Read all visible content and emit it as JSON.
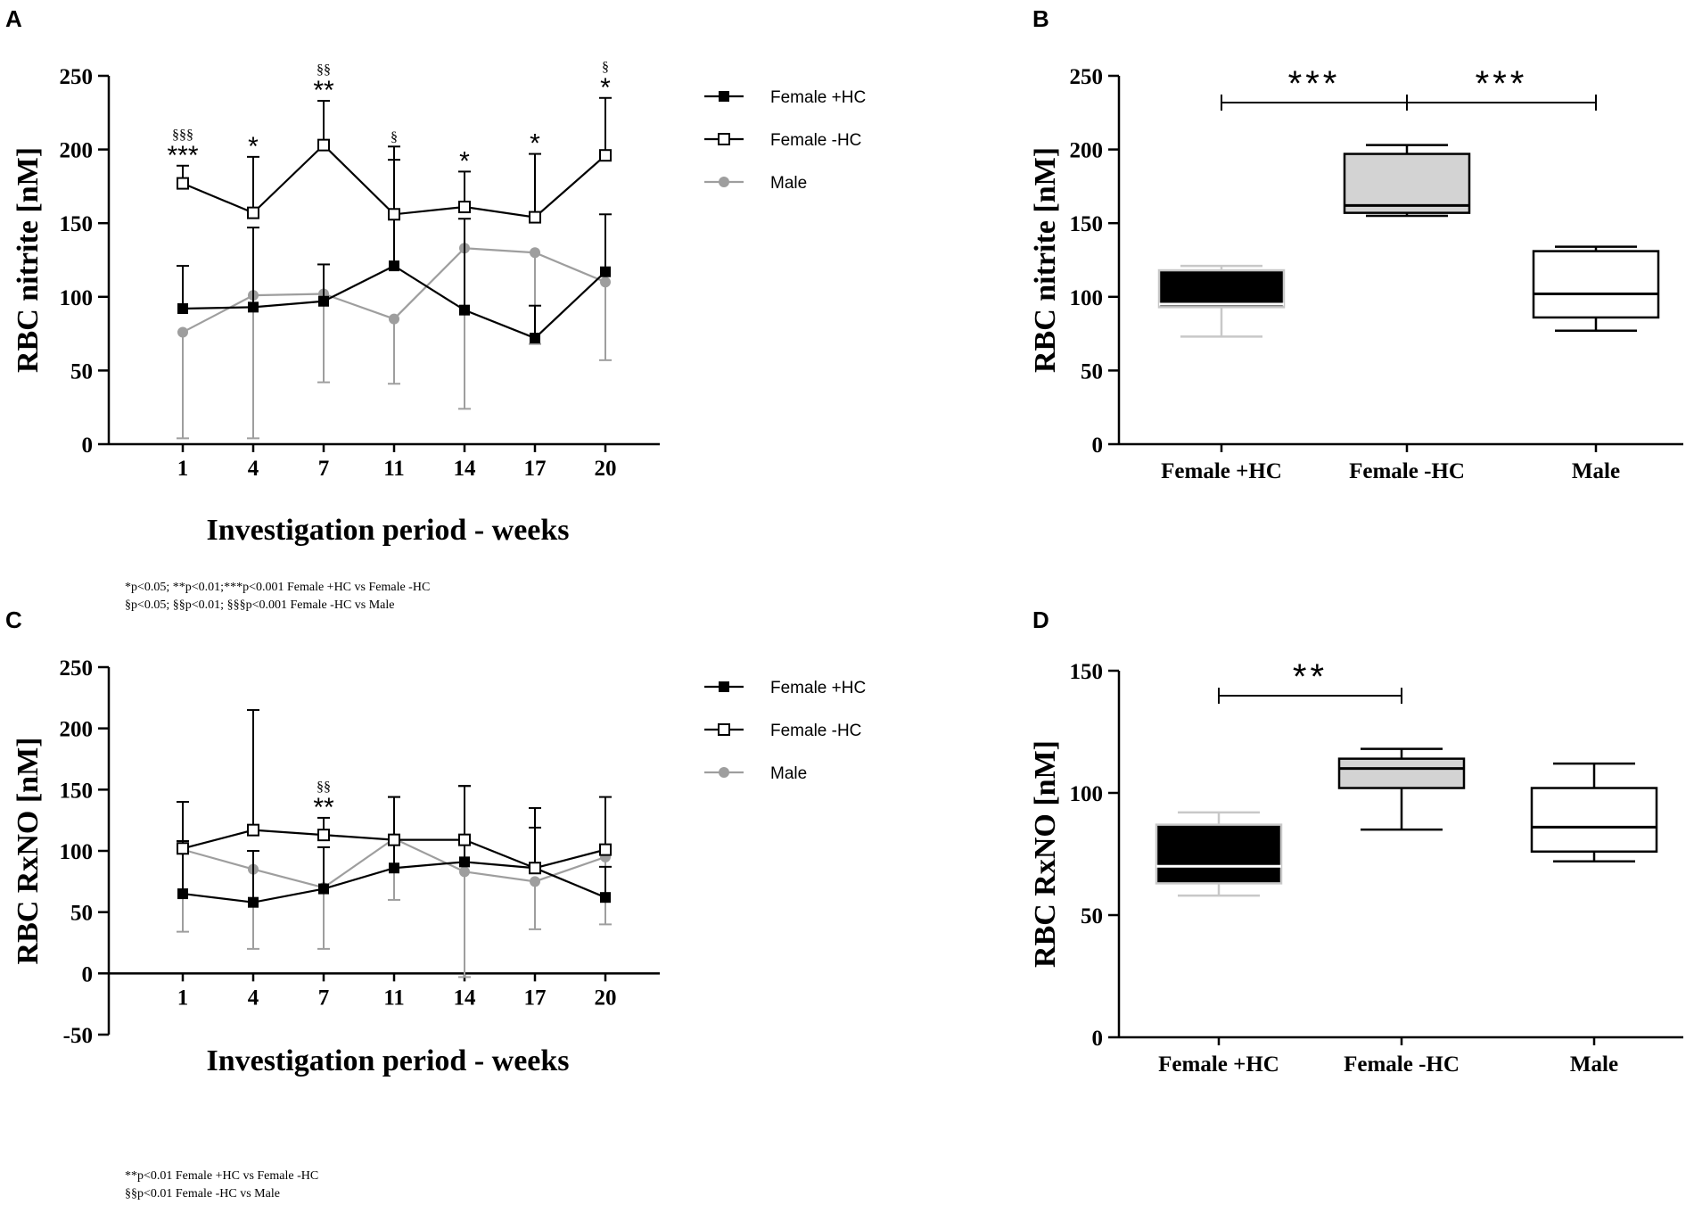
{
  "panel_labels": [
    "A",
    "B",
    "C",
    "D"
  ],
  "footnotes": {
    "A": [
      "*p<0.05; **p<0.01;***p<0.001 Female +HC vs Female -HC",
      "§p<0.05; §§p<0.01; §§§p<0.001 Female -HC vs Male"
    ],
    "C": [
      "**p<0.01 Female +HC vs Female -HC",
      "§§p<0.01 Female -HC vs Male"
    ]
  },
  "colors": {
    "female_plus": "#000000",
    "female_minus": "#000000",
    "male": "#9e9e9e",
    "box_minus_fill": "#d3d3d3"
  },
  "chart_data": [
    {
      "panel": "A",
      "type": "line",
      "xlabel": "Investigation period - weeks",
      "ylabel": "RBC nitrite [nM]",
      "ylim": [
        0,
        250
      ],
      "yticks": [
        0,
        50,
        100,
        150,
        200,
        250
      ],
      "categories": [
        "1",
        "4",
        "7",
        "11",
        "14",
        "17",
        "20"
      ],
      "legend_position": "top-right",
      "series": [
        {
          "name": "Female +HC",
          "marker": "filled-square",
          "values": [
            92,
            93,
            97,
            121,
            91,
            72,
            117
          ],
          "err": [
            29,
            54,
            25,
            72,
            62,
            22,
            39
          ]
        },
        {
          "name": "Female -HC",
          "marker": "open-square",
          "values": [
            177,
            157,
            203,
            156,
            161,
            154,
            196
          ],
          "err": [
            12,
            38,
            30,
            46,
            24,
            43,
            39
          ]
        },
        {
          "name": "Male",
          "marker": "gray-circle",
          "values": [
            76,
            101,
            102,
            85,
            133,
            130,
            110
          ],
          "err": [
            72,
            97,
            60,
            44,
            109,
            62,
            53
          ]
        }
      ],
      "annotations": [
        {
          "x": "1",
          "star": "***",
          "section": "§§§"
        },
        {
          "x": "4",
          "star": "*",
          "section": ""
        },
        {
          "x": "7",
          "star": "**",
          "section": "§§"
        },
        {
          "x": "11",
          "star": "",
          "section": "§"
        },
        {
          "x": "14",
          "star": "*",
          "section": ""
        },
        {
          "x": "17",
          "star": "*",
          "section": ""
        },
        {
          "x": "20",
          "star": "*",
          "section": "§"
        }
      ]
    },
    {
      "panel": "B",
      "type": "box",
      "ylabel": "RBC nitrite [nM]",
      "ylim": [
        0,
        250
      ],
      "yticks": [
        0,
        50,
        100,
        150,
        200,
        250
      ],
      "categories": [
        "Female +HC",
        "Female -HC",
        "Male"
      ],
      "boxes": [
        {
          "name": "Female +HC",
          "min": 73,
          "q1": 93,
          "median": 95,
          "q3": 118,
          "max": 121,
          "style": "black"
        },
        {
          "name": "Female -HC",
          "min": 155,
          "q1": 157,
          "median": 162,
          "q3": 197,
          "max": 203,
          "style": "gray"
        },
        {
          "name": "Male",
          "min": 77,
          "q1": 86,
          "median": 102,
          "q3": 131,
          "max": 134,
          "style": "white"
        }
      ],
      "significance": [
        {
          "from": "Female +HC",
          "to": "Female -HC",
          "label": "***"
        },
        {
          "from": "Female -HC",
          "to": "Male",
          "label": "***"
        }
      ]
    },
    {
      "panel": "C",
      "type": "line",
      "xlabel": "Investigation period - weeks",
      "ylabel": "RBC RxNO [nM]",
      "ylim": [
        -50,
        250
      ],
      "yticks": [
        -50,
        0,
        50,
        100,
        150,
        200,
        250
      ],
      "categories": [
        "1",
        "4",
        "7",
        "11",
        "14",
        "17",
        "20"
      ],
      "legend_position": "top-right",
      "series": [
        {
          "name": "Female +HC",
          "marker": "filled-square",
          "values": [
            65,
            58,
            69,
            86,
            91,
            86,
            62
          ],
          "err": [
            43,
            42,
            34,
            58,
            62,
            33,
            25
          ]
        },
        {
          "name": "Female -HC",
          "marker": "open-square",
          "values": [
            102,
            117,
            113,
            109,
            109,
            86,
            101
          ],
          "err": [
            38,
            98,
            14,
            35,
            44,
            49,
            43
          ]
        },
        {
          "name": "Male",
          "marker": "gray-circle",
          "values": [
            101,
            85,
            70,
            110,
            83,
            75,
            95
          ],
          "err": [
            67,
            65,
            50,
            50,
            86,
            39,
            55
          ]
        }
      ],
      "annotations": [
        {
          "x": "7",
          "star": "**",
          "section": "§§"
        }
      ]
    },
    {
      "panel": "D",
      "type": "box",
      "ylabel": "RBC RxNO [nM]",
      "ylim": [
        0,
        150
      ],
      "yticks": [
        0,
        50,
        100,
        150
      ],
      "categories": [
        "Female +HC",
        "Female -HC",
        "Male"
      ],
      "boxes": [
        {
          "name": "Female +HC",
          "min": 58,
          "q1": 63,
          "median": 70,
          "q3": 87,
          "max": 92,
          "style": "black"
        },
        {
          "name": "Female -HC",
          "min": 85,
          "q1": 102,
          "median": 110,
          "q3": 114,
          "max": 118,
          "style": "gray"
        },
        {
          "name": "Male",
          "min": 72,
          "q1": 76,
          "median": 86,
          "q3": 102,
          "max": 112,
          "style": "white"
        }
      ],
      "significance": [
        {
          "from": "Female +HC",
          "to": "Female -HC",
          "label": "**"
        }
      ]
    }
  ]
}
